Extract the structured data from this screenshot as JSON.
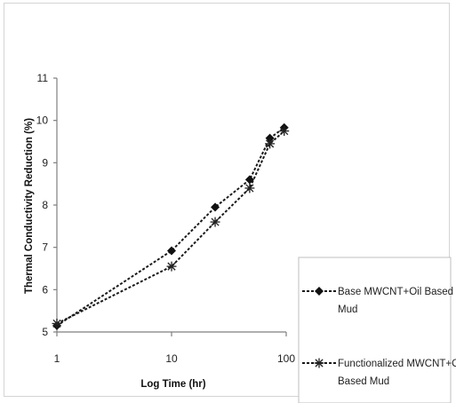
{
  "chart_data": {
    "type": "line",
    "x_scale": "log",
    "xlabel": "Log Time (hr)",
    "ylabel": "Thermal Conductivity Reduction (%)",
    "xlim": [
      1,
      100
    ],
    "ylim": [
      5,
      11
    ],
    "x_ticks": [
      1,
      10,
      100
    ],
    "y_ticks": [
      5,
      6,
      7,
      8,
      9,
      10,
      11
    ],
    "grid": false,
    "legend_position": "bottom-right",
    "series": [
      {
        "name": "Base MWCNT+Oil Based Mud",
        "marker": "diamond",
        "color": "#1a1a1a",
        "x": [
          1,
          10,
          24,
          48,
          72,
          96
        ],
        "y": [
          5.15,
          6.92,
          7.95,
          8.6,
          9.58,
          9.83
        ]
      },
      {
        "name": "Functionalized MWCNT+Oil Based Mud",
        "marker": "star",
        "color": "#1a1a1a",
        "x": [
          1,
          10,
          24,
          48,
          72,
          96
        ],
        "y": [
          5.2,
          6.55,
          7.6,
          8.4,
          9.45,
          9.75
        ]
      }
    ]
  }
}
